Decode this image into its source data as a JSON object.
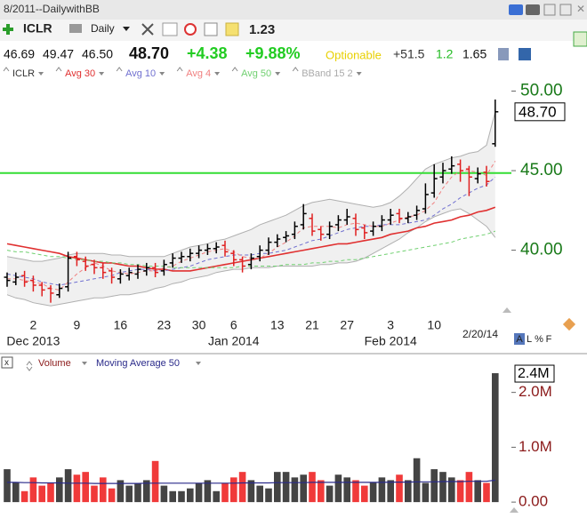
{
  "header": {
    "title": "8/2011--DailywithBB",
    "symbol": "ICLR",
    "period": "Daily",
    "value": "1.23",
    "quote": [
      "46.69",
      "49.47",
      "46.50"
    ],
    "last": "48.70",
    "change": "+4.38",
    "change_pct": "+9.88%",
    "optionable": "Optionable",
    "extra": [
      "+51.5",
      "1.2",
      "1.65"
    ],
    "toolbar_labels": [
      "A",
      "L",
      "%",
      "F"
    ]
  },
  "chart_data": [
    {
      "type": "ohlc",
      "symbol": "ICLR",
      "up_color": "#000000",
      "down_color": "#e02020",
      "categories": [
        null,
        null,
        null,
        "2",
        null,
        null,
        null,
        null,
        "9",
        null,
        null,
        null,
        null,
        "16",
        null,
        null,
        null,
        null,
        "23",
        null,
        null,
        null,
        "30",
        null,
        null,
        null,
        "6",
        null,
        null,
        null,
        null,
        "13",
        null,
        null,
        null,
        "21",
        null,
        null,
        null,
        "27",
        null,
        null,
        null,
        null,
        "3",
        null,
        null,
        null,
        null,
        "10",
        null,
        null,
        null,
        null,
        null,
        null,
        null
      ],
      "months": [
        null,
        null,
        null,
        "Dec 2013",
        null,
        null,
        null,
        null,
        null,
        null,
        null,
        null,
        null,
        null,
        null,
        null,
        null,
        null,
        null,
        null,
        null,
        null,
        null,
        null,
        null,
        null,
        "Jan 2014",
        null,
        null,
        null,
        null,
        null,
        null,
        null,
        null,
        null,
        null,
        null,
        null,
        null,
        null,
        null,
        null,
        null,
        "Feb 2014",
        null,
        null,
        null,
        null,
        null,
        null,
        null,
        null,
        null,
        null,
        null,
        null
      ],
      "date_label": "2/20/14",
      "open": [
        38.3,
        38.0,
        38.4,
        38.1,
        37.8,
        37.6,
        37.2,
        37.7,
        39.6,
        39.3,
        39.1,
        38.9,
        38.7,
        38.2,
        38.4,
        38.5,
        38.7,
        38.9,
        38.7,
        39.2,
        39.5,
        39.6,
        39.8,
        40.0,
        40.1,
        40.3,
        39.8,
        39.4,
        39.1,
        39.6,
        40.0,
        40.5,
        40.8,
        41.0,
        41.6,
        42.0,
        41.3,
        41.0,
        41.6,
        41.9,
        42.0,
        41.4,
        41.2,
        41.5,
        41.9,
        42.3,
        42.0,
        42.2,
        42.6,
        43.6,
        44.6,
        45.1,
        45.4,
        45.1,
        44.5,
        44.9,
        46.69
      ],
      "high": [
        38.6,
        38.6,
        38.7,
        38.4,
        38.0,
        37.8,
        37.9,
        39.9,
        39.9,
        39.6,
        39.4,
        39.2,
        38.9,
        38.8,
        38.9,
        39.1,
        39.2,
        39.2,
        39.4,
        39.8,
        39.9,
        40.1,
        40.3,
        40.4,
        40.5,
        40.6,
        40.0,
        39.6,
        39.8,
        40.3,
        40.8,
        41.0,
        41.2,
        41.8,
        42.9,
        42.3,
        41.5,
        41.8,
        42.2,
        42.6,
        42.3,
        41.6,
        41.8,
        42.2,
        42.6,
        42.6,
        42.4,
        42.8,
        44.2,
        45.4,
        45.5,
        45.9,
        45.7,
        45.3,
        45.2,
        45.3,
        49.47
      ],
      "low": [
        37.7,
        37.8,
        37.7,
        37.4,
        37.1,
        36.7,
        37.0,
        37.4,
        39.0,
        38.7,
        38.5,
        38.2,
        37.9,
        37.9,
        38.1,
        38.2,
        38.4,
        38.3,
        38.4,
        38.9,
        39.2,
        39.3,
        39.5,
        39.7,
        39.8,
        39.6,
        39.0,
        38.6,
        38.8,
        39.3,
        39.7,
        40.2,
        40.5,
        40.7,
        41.3,
        40.9,
        40.6,
        40.7,
        41.2,
        41.6,
        40.9,
        40.7,
        40.9,
        41.2,
        41.6,
        41.7,
        41.7,
        41.9,
        42.3,
        43.3,
        44.2,
        44.8,
        44.3,
        43.4,
        44.2,
        44.0,
        46.5
      ],
      "close": [
        38.1,
        38.3,
        38.0,
        37.8,
        37.5,
        37.3,
        37.6,
        39.5,
        39.4,
        39.0,
        38.9,
        38.6,
        38.3,
        38.5,
        38.6,
        38.8,
        38.9,
        38.6,
        39.1,
        39.5,
        39.6,
        39.8,
        40.0,
        40.1,
        40.2,
        39.9,
        39.4,
        39.0,
        39.5,
        40.0,
        40.5,
        40.7,
        40.9,
        41.5,
        42.3,
        41.2,
        41.0,
        41.5,
        41.9,
        42.1,
        41.3,
        41.1,
        41.5,
        41.9,
        42.2,
        42.0,
        42.1,
        42.5,
        43.5,
        44.5,
        45.0,
        45.3,
        45.0,
        44.6,
        44.8,
        44.32,
        48.7
      ],
      "last_label": "48.70",
      "series": [
        {
          "name": "Avg 30",
          "color": "#e03030",
          "dash": false,
          "values": [
            40.4,
            40.3,
            40.2,
            40.1,
            40.0,
            39.9,
            39.8,
            39.6,
            39.5,
            39.4,
            39.3,
            39.2,
            39.2,
            39.1,
            39.0,
            39.0,
            38.9,
            38.8,
            38.8,
            38.7,
            38.7,
            38.7,
            38.8,
            38.9,
            39.0,
            39.1,
            39.2,
            39.3,
            39.4,
            39.5,
            39.6,
            39.7,
            39.8,
            39.9,
            40.0,
            40.1,
            40.2,
            40.3,
            40.4,
            40.4,
            40.5,
            40.6,
            40.7,
            40.8,
            41.0,
            41.1,
            41.2,
            41.4,
            41.5,
            41.7,
            41.8,
            41.9,
            42.1,
            42.2,
            42.4,
            42.5,
            42.7
          ]
        },
        {
          "name": "Avg 10",
          "color": "#7070d0",
          "dash": true,
          "values": [
            38.5,
            38.4,
            38.3,
            38.2,
            38.0,
            37.9,
            37.8,
            37.9,
            38.0,
            38.1,
            38.2,
            38.3,
            38.4,
            38.6,
            38.7,
            38.8,
            38.8,
            38.7,
            38.7,
            38.8,
            38.9,
            39.0,
            39.2,
            39.4,
            39.5,
            39.6,
            39.7,
            39.7,
            39.7,
            39.8,
            39.8,
            39.9,
            40.0,
            40.2,
            40.4,
            40.6,
            40.7,
            40.9,
            41.1,
            41.3,
            41.4,
            41.5,
            41.5,
            41.6,
            41.6,
            41.6,
            41.7,
            41.8,
            41.9,
            42.2,
            42.6,
            42.9,
            43.3,
            43.6,
            43.9,
            44.1,
            44.6
          ]
        },
        {
          "name": "Avg 4",
          "color": "#f08080",
          "dash": true,
          "values": [
            38.2,
            38.2,
            38.1,
            38.0,
            37.9,
            37.6,
            37.5,
            38.0,
            38.5,
            38.9,
            39.2,
            39.0,
            38.7,
            38.6,
            38.5,
            38.6,
            38.7,
            38.7,
            38.9,
            39.0,
            39.3,
            39.5,
            39.7,
            39.9,
            40.0,
            40.1,
            39.9,
            39.6,
            39.5,
            39.5,
            39.8,
            40.2,
            40.5,
            40.9,
            41.4,
            41.5,
            41.5,
            41.5,
            41.4,
            41.6,
            41.7,
            41.6,
            41.5,
            41.5,
            41.7,
            41.9,
            42.1,
            42.2,
            42.5,
            43.0,
            43.9,
            44.6,
            45.0,
            45.0,
            44.9,
            44.7,
            45.6
          ]
        },
        {
          "name": "Avg 50",
          "color": "#70d070",
          "dash": true,
          "values": [
            40.0,
            39.9,
            39.9,
            39.8,
            39.7,
            39.6,
            39.6,
            39.5,
            39.4,
            39.4,
            39.3,
            39.3,
            39.2,
            39.2,
            39.1,
            39.1,
            39.0,
            39.0,
            39.0,
            38.9,
            38.9,
            38.9,
            38.9,
            38.9,
            38.9,
            38.9,
            38.9,
            39.0,
            39.0,
            39.0,
            39.0,
            39.0,
            39.1,
            39.1,
            39.1,
            39.2,
            39.2,
            39.3,
            39.3,
            39.4,
            39.4,
            39.5,
            39.6,
            39.7,
            39.8,
            39.9,
            40.0,
            40.1,
            40.2,
            40.3,
            40.4,
            40.5,
            40.7,
            40.8,
            40.9,
            41.0,
            41.2
          ]
        }
      ],
      "band": {
        "name": "BBand 15 2",
        "color": "#b0b0b0",
        "upper": [
          39.6,
          39.5,
          39.4,
          39.3,
          39.3,
          39.4,
          39.5,
          39.7,
          39.8,
          39.8,
          39.8,
          39.8,
          39.7,
          39.7,
          39.6,
          39.6,
          39.6,
          39.6,
          39.6,
          39.8,
          40.0,
          40.2,
          40.3,
          40.4,
          40.6,
          40.7,
          40.9,
          41.1,
          41.3,
          41.6,
          41.8,
          42.0,
          42.2,
          42.5,
          42.8,
          43.0,
          43.1,
          43.2,
          43.1,
          43.0,
          42.9,
          42.8,
          42.7,
          42.8,
          43.0,
          43.4,
          43.9,
          44.5,
          45.1,
          45.4,
          45.6,
          45.8,
          45.9,
          46.1,
          46.2,
          46.6,
          48.7
        ],
        "lower": [
          37.2,
          37.0,
          36.9,
          36.7,
          36.6,
          36.5,
          36.6,
          36.7,
          36.8,
          36.9,
          37.0,
          37.0,
          37.1,
          37.2,
          37.2,
          37.3,
          37.4,
          37.6,
          37.7,
          37.9,
          38.0,
          38.2,
          38.3,
          38.4,
          38.6,
          38.7,
          38.8,
          38.8,
          38.9,
          38.9,
          38.9,
          39.0,
          39.0,
          39.0,
          39.0,
          39.0,
          39.1,
          39.1,
          39.2,
          39.2,
          39.3,
          39.5,
          39.8,
          40.1,
          40.4,
          40.7,
          41.1,
          41.4,
          41.8,
          42.1,
          42.3,
          42.5,
          42.6,
          42.3,
          41.9,
          41.5,
          40.8
        ]
      },
      "hline": {
        "value": 44.85,
        "color": "#33dd33"
      },
      "ylim": [
        35.9,
        50.7
      ],
      "yticks": [
        {
          "value": 50,
          "label": "50.00"
        },
        {
          "value": 45,
          "label": "45.00"
        },
        {
          "value": 40,
          "label": "40.00"
        }
      ],
      "tick_color": "#1a7a1a"
    },
    {
      "type": "bar",
      "up_color": "#444444",
      "down_color": "#f03a3a",
      "series": [
        {
          "name": "Volume",
          "values": [
            600000,
            350000,
            200000,
            450000,
            300000,
            350000,
            450000,
            600000,
            500000,
            550000,
            300000,
            450000,
            250000,
            400000,
            300000,
            350000,
            400000,
            750000,
            300000,
            200000,
            200000,
            250000,
            350000,
            400000,
            200000,
            350000,
            450000,
            550000,
            400000,
            300000,
            250000,
            550000,
            550000,
            450000,
            500000,
            550000,
            400000,
            300000,
            500000,
            450000,
            400000,
            300000,
            350000,
            450000,
            400000,
            500000,
            400000,
            800000,
            350000,
            600000,
            550000,
            450000,
            400000,
            550000,
            400000,
            350000,
            2350000
          ]
        }
      ],
      "moving_average": {
        "name": "Moving Average 50",
        "color": "#2a2a8a",
        "values": [
          360000,
          360000,
          355000,
          355000,
          350000,
          350000,
          350000,
          345000,
          345000,
          345000,
          340000,
          340000,
          340000,
          340000,
          340000,
          340000,
          345000,
          345000,
          345000,
          345000,
          345000,
          345000,
          345000,
          345000,
          345000,
          345000,
          345000,
          350000,
          350000,
          350000,
          350000,
          355000,
          355000,
          355000,
          355000,
          360000,
          360000,
          360000,
          360000,
          360000,
          360000,
          360000,
          360000,
          360000,
          365000,
          365000,
          365000,
          370000,
          370000,
          370000,
          375000,
          375000,
          375000,
          380000,
          380000,
          380000,
          400000
        ]
      },
      "last_label": "2.4M",
      "ylim": [
        -160000,
        2480000
      ],
      "yticks": [
        {
          "value": 0,
          "label": "0.00"
        },
        {
          "value": 1000000,
          "label": "1.0M"
        },
        {
          "value": 2000000,
          "label": "2.0M"
        }
      ],
      "tick_color": "#8b1a1a"
    }
  ]
}
